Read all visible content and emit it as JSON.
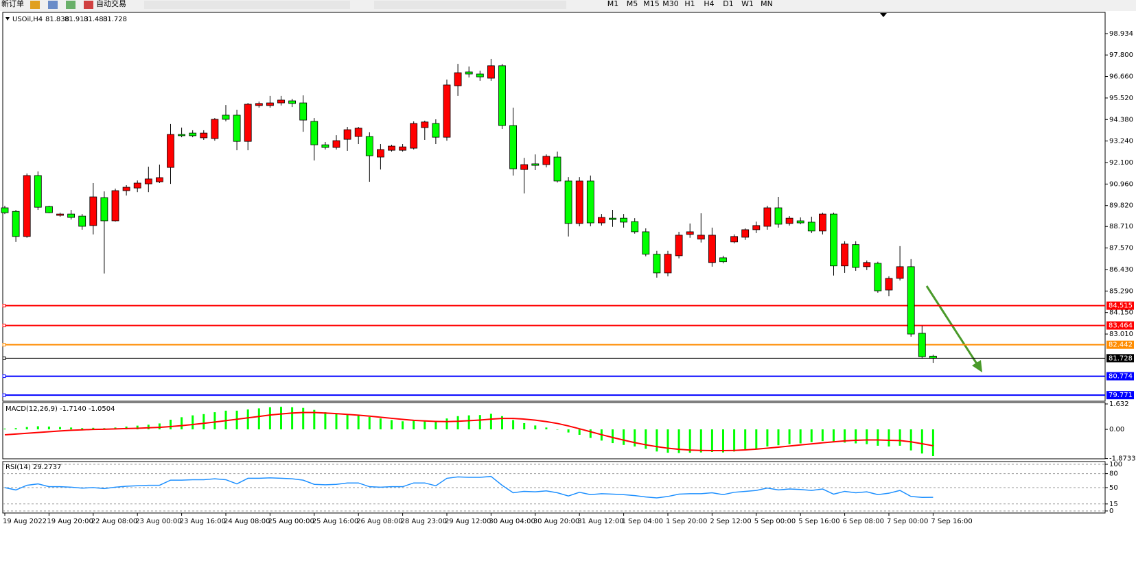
{
  "toolbar": {
    "order": "新订单",
    "autotrade": "自动交易",
    "timeframes": [
      "M1",
      "M5",
      "M15",
      "M30",
      "H1",
      "H4",
      "D1",
      "W1",
      "MN"
    ]
  },
  "chart_data": [
    {
      "type": "candlestick",
      "symbol": "USOil,H4",
      "categories": [
        "19 Aug 2022",
        null,
        null,
        null,
        "19 Aug 20:00",
        null,
        null,
        null,
        "22 Aug 08:00",
        null,
        null,
        null,
        "23 Aug 00:00",
        null,
        null,
        null,
        "23 Aug 16:00",
        null,
        null,
        null,
        "24 Aug 08:00",
        null,
        null,
        null,
        "25 Aug 00:00",
        null,
        null,
        null,
        "25 Aug 16:00",
        null,
        null,
        null,
        "26 Aug 08:00",
        null,
        null,
        null,
        "28 Aug 23:00",
        null,
        null,
        null,
        "29 Aug 12:00",
        null,
        null,
        null,
        "30 Aug 04:00",
        null,
        null,
        null,
        "30 Aug 20:00",
        null,
        null,
        null,
        "31 Aug 12:00",
        null,
        null,
        null,
        "1 Sep 04:00",
        null,
        null,
        null,
        "1 Sep 20:00",
        null,
        null,
        null,
        "2 Sep 12:00",
        null,
        null,
        null,
        "5 Sep 00:00",
        null,
        null,
        null,
        "5 Sep 16:00",
        null,
        null,
        null,
        "6 Sep 08:00",
        null,
        null,
        null,
        "7 Sep 00:00",
        null,
        null,
        null,
        "7 Sep 16:00"
      ],
      "open": [
        89.7,
        89.51,
        88.18,
        91.41,
        89.77,
        89.3,
        89.37,
        89.26,
        88.76,
        90.24,
        89.01,
        90.61,
        90.75,
        90.97,
        91.08,
        91.84,
        93.59,
        93.66,
        93.41,
        93.37,
        94.61,
        94.61,
        93.22,
        95.12,
        95.12,
        95.26,
        95.37,
        95.26,
        94.28,
        93.04,
        92.9,
        93.33,
        93.48,
        93.48,
        92.39,
        92.75,
        92.75,
        92.86,
        93.95,
        94.17,
        93.44,
        96.17,
        96.9,
        96.79,
        96.57,
        97.23,
        94.06,
        91.73,
        92.03,
        91.99,
        92.39,
        91.12,
        88.87,
        91.12,
        88.9,
        89.15,
        89.15,
        88.97,
        88.43,
        87.24,
        86.25,
        87.16,
        88.29,
        88.04,
        86.8,
        87.05,
        87.89,
        88.14,
        88.54,
        88.72,
        89.7,
        88.87,
        89.01,
        88.94,
        88.47,
        89.37,
        86.62,
        87.75,
        86.58,
        86.76,
        85.34,
        85.96,
        86.58,
        83.05,
        81.838
      ],
      "high": [
        89.81,
        89.59,
        91.52,
        91.63,
        89.81,
        89.44,
        89.59,
        89.37,
        91.01,
        90.57,
        90.72,
        90.9,
        91.15,
        91.88,
        91.99,
        94.14,
        93.95,
        93.81,
        93.81,
        94.46,
        95.15,
        94.9,
        95.26,
        95.33,
        95.63,
        95.63,
        95.48,
        95.66,
        94.46,
        93.19,
        93.55,
        93.99,
        93.99,
        93.7,
        93.08,
        93.04,
        93.08,
        94.28,
        94.32,
        94.39,
        96.5,
        97.33,
        97.19,
        96.97,
        97.59,
        97.33,
        95.01,
        92.35,
        92.53,
        92.53,
        92.68,
        91.33,
        91.33,
        91.41,
        89.37,
        89.59,
        89.37,
        89.15,
        88.61,
        87.42,
        87.42,
        88.43,
        88.87,
        89.41,
        88.65,
        87.16,
        88.29,
        88.61,
        88.97,
        89.81,
        90.28,
        89.26,
        89.19,
        89.23,
        89.44,
        89.44,
        87.93,
        87.93,
        86.91,
        86.84,
        86.07,
        87.67,
        86.98,
        83.45,
        81.913
      ],
      "low": [
        89.37,
        87.89,
        88.11,
        89.59,
        89.41,
        89.23,
        89.08,
        88.54,
        88.29,
        86.22,
        88.97,
        90.35,
        90.53,
        90.53,
        91.01,
        90.97,
        93.44,
        93.44,
        93.3,
        93.26,
        94.28,
        92.75,
        92.75,
        95.01,
        95.01,
        95.12,
        95.04,
        93.73,
        92.21,
        92.79,
        92.79,
        92.72,
        93.08,
        91.08,
        91.73,
        92.68,
        92.68,
        92.79,
        93.3,
        93.08,
        93.26,
        95.63,
        96.61,
        96.43,
        96.43,
        93.88,
        91.41,
        90.46,
        91.7,
        91.84,
        91.04,
        88.18,
        88.72,
        88.72,
        88.76,
        88.69,
        88.65,
        88.33,
        87.13,
        86.0,
        86.07,
        87.02,
        88.11,
        87.86,
        86.58,
        86.76,
        87.82,
        88.0,
        88.36,
        88.54,
        88.65,
        88.76,
        88.83,
        88.36,
        88.29,
        86.11,
        86.25,
        86.36,
        86.4,
        85.2,
        85.01,
        85.85,
        82.87,
        81.7,
        81.483
      ],
      "close": [
        89.44,
        88.18,
        91.41,
        89.73,
        89.44,
        89.37,
        89.19,
        88.72,
        90.28,
        89.01,
        90.61,
        90.79,
        91.01,
        91.23,
        91.3,
        93.59,
        93.52,
        93.52,
        93.66,
        94.39,
        94.39,
        93.22,
        95.19,
        95.23,
        95.26,
        95.41,
        95.23,
        94.35,
        93.04,
        92.9,
        93.26,
        93.84,
        93.92,
        92.46,
        92.79,
        92.97,
        92.93,
        94.17,
        94.25,
        93.44,
        96.21,
        96.86,
        96.79,
        96.64,
        97.23,
        94.06,
        91.77,
        91.99,
        91.95,
        92.43,
        91.12,
        88.87,
        91.12,
        88.9,
        89.19,
        89.08,
        88.94,
        88.43,
        87.24,
        86.25,
        87.24,
        88.25,
        88.43,
        88.25,
        88.25,
        86.84,
        88.18,
        88.54,
        88.76,
        89.7,
        88.83,
        89.15,
        88.9,
        88.47,
        89.37,
        86.62,
        87.78,
        86.54,
        86.8,
        85.3,
        85.96,
        86.58,
        83.01,
        81.81,
        81.728
      ],
      "up_color": "#ff0000",
      "down_color": "#00ff00",
      "ylim": [
        79.45,
        100.06
      ],
      "yticks": [
        98.934,
        {
          "value": 97.8,
          "label": "97.800"
        },
        {
          "value": 96.66,
          "label": "96.660"
        },
        {
          "value": 95.52,
          "label": "95.520"
        },
        {
          "value": 94.38,
          "label": "94.380"
        },
        {
          "value": 93.24,
          "label": "93.240"
        },
        {
          "value": 92.1,
          "label": "92.100"
        },
        {
          "value": 90.96,
          "label": "90.960"
        },
        {
          "value": 89.82,
          "label": "89.820"
        },
        {
          "value": 88.71,
          "label": "88.710"
        },
        {
          "value": 87.57,
          "label": "87.570"
        },
        {
          "value": 86.43,
          "label": "86.430"
        },
        {
          "value": 85.29,
          "label": "85.290"
        },
        {
          "value": 84.15,
          "label": "84.150"
        },
        {
          "value": 83.01,
          "label": "83.010"
        }
      ],
      "hlines": [
        {
          "value": 84.515,
          "color": "#ff0000"
        },
        {
          "value": 83.464,
          "color": "#ff0000"
        },
        {
          "value": 82.442,
          "color": "#ff8c00"
        },
        {
          "value": 81.728,
          "color": "#000000"
        },
        {
          "value": 80.774,
          "color": "#0000ff"
        },
        {
          "value": 79.771,
          "color": "#0000ff"
        }
      ]
    },
    {
      "type": "macd",
      "title": "MACD(12,26,9) -1.7140 -1.0504",
      "series": [
        {
          "name": "MACD",
          "color": "#00ff00",
          "values": [
            0.05,
            0.08,
            0.15,
            0.2,
            0.18,
            0.15,
            0.12,
            0.08,
            0.1,
            0.08,
            0.12,
            0.18,
            0.24,
            0.3,
            0.38,
            0.62,
            0.78,
            0.9,
            0.98,
            1.1,
            1.2,
            1.2,
            1.28,
            1.35,
            1.42,
            1.45,
            1.42,
            1.38,
            1.25,
            1.1,
            1.0,
            0.95,
            0.9,
            0.8,
            0.7,
            0.6,
            0.52,
            0.55,
            0.58,
            0.55,
            0.7,
            0.85,
            0.9,
            0.92,
            1.0,
            0.85,
            0.6,
            0.4,
            0.25,
            0.12,
            0,
            -0.2,
            -0.35,
            -0.55,
            -0.72,
            -0.88,
            -1.0,
            -1.1,
            -1.25,
            -1.42,
            -1.5,
            -1.52,
            -1.5,
            -1.48,
            -1.45,
            -1.48,
            -1.42,
            -1.35,
            -1.25,
            -1.1,
            -1.02,
            -0.95,
            -0.9,
            -0.82,
            -0.75,
            -0.8,
            -0.85,
            -0.9,
            -0.95,
            -1.05,
            -1.1,
            -1.05,
            -1.35,
            -1.55,
            -1.714
          ]
        },
        {
          "name": "Signal",
          "color": "#ff0000",
          "values": [
            -0.35,
            -0.3,
            -0.25,
            -0.2,
            -0.15,
            -0.1,
            -0.06,
            -0.03,
            0,
            0.01,
            0.03,
            0.05,
            0.07,
            0.1,
            0.13,
            0.18,
            0.24,
            0.31,
            0.39,
            0.47,
            0.56,
            0.65,
            0.74,
            0.83,
            0.92,
            0.99,
            1.05,
            1.08,
            1.08,
            1.05,
            1.01,
            0.96,
            0.91,
            0.85,
            0.78,
            0.71,
            0.64,
            0.58,
            0.54,
            0.51,
            0.5,
            0.52,
            0.56,
            0.6,
            0.66,
            0.7,
            0.7,
            0.66,
            0.59,
            0.5,
            0.38,
            0.22,
            0.04,
            -0.15,
            -0.34,
            -0.52,
            -0.69,
            -0.85,
            -0.99,
            -1.11,
            -1.21,
            -1.28,
            -1.33,
            -1.35,
            -1.36,
            -1.36,
            -1.35,
            -1.32,
            -1.27,
            -1.21,
            -1.14,
            -1.07,
            -1.0,
            -0.93,
            -0.86,
            -0.8,
            -0.74,
            -0.7,
            -0.68,
            -0.68,
            -0.7,
            -0.72,
            -0.8,
            -0.92,
            -1.0504
          ]
        }
      ],
      "ylim": [
        -1.89,
        1.72
      ],
      "yticks": [
        1.632,
        {
          "value": 0,
          "label": "0.00"
        },
        -1.8733
      ]
    },
    {
      "type": "rsi",
      "title": "RSI(14) 29.2737",
      "series": [
        {
          "name": "RSI",
          "color": "#1e90ff",
          "values": [
            50,
            45,
            55,
            58,
            52,
            52,
            51,
            49,
            50,
            48,
            51,
            53,
            54,
            55,
            55,
            66,
            66,
            67,
            67,
            69,
            67,
            58,
            70,
            70,
            71,
            70,
            69,
            66,
            57,
            56,
            57,
            60,
            60,
            52,
            51,
            52,
            52,
            60,
            60,
            54,
            70,
            73,
            72,
            72,
            74,
            55,
            39,
            42,
            41,
            43,
            39,
            32,
            40,
            35,
            37,
            36,
            35,
            33,
            30,
            28,
            31,
            36,
            37,
            37,
            39,
            35,
            40,
            42,
            44,
            49,
            45,
            47,
            46,
            44,
            47,
            36,
            42,
            39,
            41,
            35,
            38,
            44,
            31,
            29,
            29.2737
          ]
        }
      ],
      "ylim": [
        -4.4,
        105.9
      ],
      "yticks": [
        100,
        80,
        50,
        15,
        0
      ],
      "grid": true
    }
  ]
}
